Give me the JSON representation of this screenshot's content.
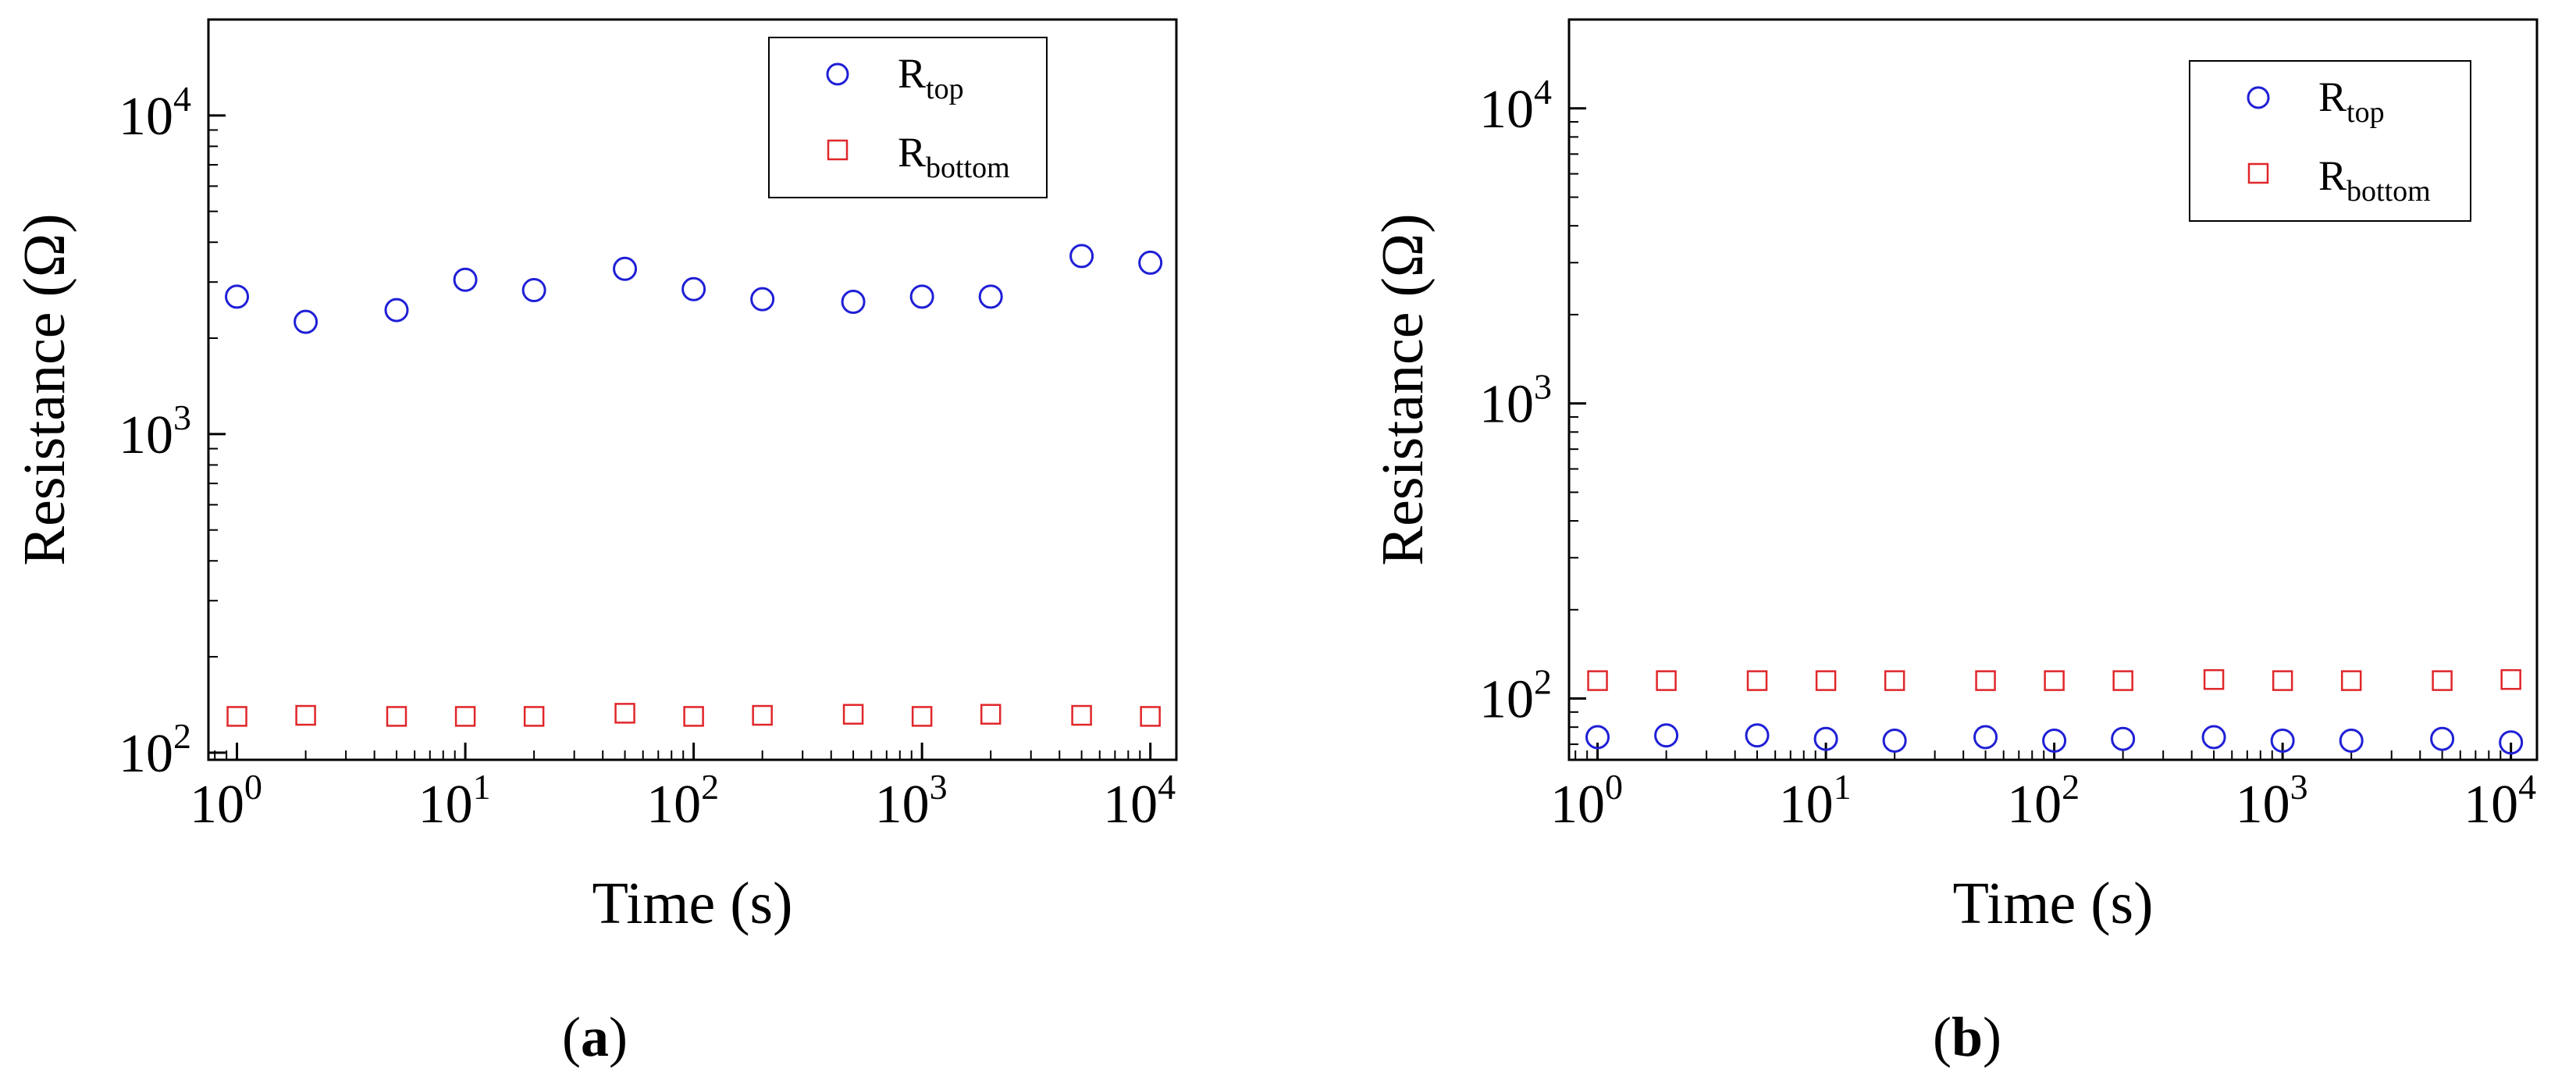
{
  "colors": {
    "top": "#1f1fd6",
    "bottom": "#e0262a",
    "axis": "#000000"
  },
  "chart_data": [
    {
      "type": "scatter",
      "panel_label": "a",
      "xlabel": "Time (s)",
      "ylabel": "Resistance (Ω)",
      "xscale": "log",
      "yscale": "log",
      "xlim": [
        0.75,
        13000
      ],
      "ylim": [
        95,
        20000
      ],
      "xticks": [
        1,
        10,
        100,
        1000,
        10000
      ],
      "yticks": [
        100,
        1000,
        10000
      ],
      "legend_position": "top-right",
      "series": [
        {
          "name": "R",
          "sub": "top",
          "marker": "circle",
          "color": "#1f1fd6",
          "x": [
            1,
            2,
            5,
            10,
            20,
            50,
            100,
            200,
            500,
            1000,
            2000,
            5000,
            10000
          ],
          "y": [
            2700,
            2250,
            2450,
            3050,
            2830,
            3300,
            2850,
            2650,
            2600,
            2700,
            2700,
            3620,
            3450
          ]
        },
        {
          "name": "R",
          "sub": "bottom",
          "marker": "square",
          "color": "#e0262a",
          "x": [
            1,
            2,
            5,
            10,
            20,
            50,
            100,
            200,
            500,
            1000,
            2000,
            5000,
            10000
          ],
          "y": [
            130,
            131,
            130,
            130,
            130,
            133,
            130,
            131,
            132,
            130,
            132,
            131,
            130
          ]
        }
      ]
    },
    {
      "type": "scatter",
      "panel_label": "b",
      "xlabel": "Time (s)",
      "ylabel": "Resistance (Ω)",
      "xscale": "log",
      "yscale": "log",
      "xlim": [
        0.75,
        13000
      ],
      "ylim": [
        62,
        20000
      ],
      "xticks": [
        1,
        10,
        100,
        1000,
        10000
      ],
      "yticks": [
        100,
        1000,
        10000
      ],
      "legend_position": "top-right",
      "series": [
        {
          "name": "R",
          "sub": "top",
          "marker": "circle",
          "color": "#1f1fd6",
          "x": [
            1,
            2,
            5,
            10,
            20,
            50,
            100,
            200,
            500,
            1000,
            2000,
            5000,
            10000
          ],
          "y": [
            74,
            75,
            75,
            73,
            72,
            74,
            72,
            73,
            74,
            72,
            72,
            73,
            71
          ]
        },
        {
          "name": "R",
          "sub": "bottom",
          "marker": "square",
          "color": "#e0262a",
          "x": [
            1,
            2,
            5,
            10,
            20,
            50,
            100,
            200,
            500,
            1000,
            2000,
            5000,
            10000
          ],
          "y": [
            115,
            115,
            115,
            115,
            115,
            115,
            115,
            115,
            116,
            115,
            115,
            115,
            116
          ]
        }
      ]
    }
  ]
}
